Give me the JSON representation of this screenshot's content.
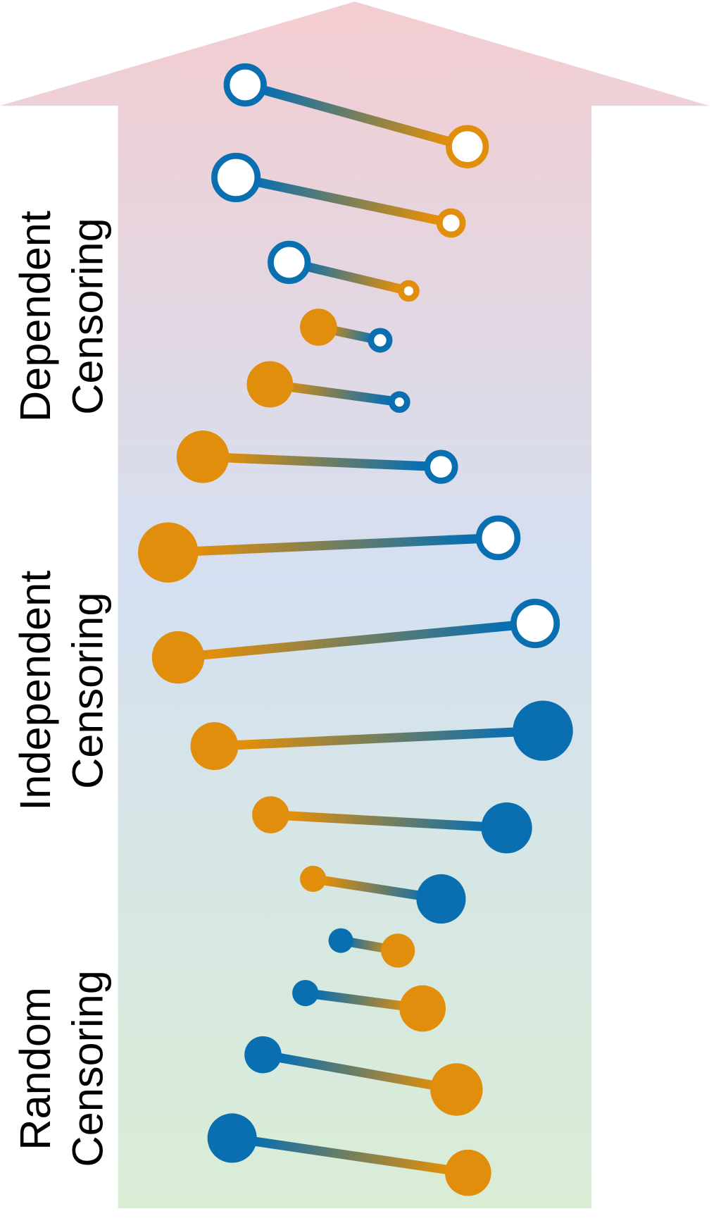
{
  "labels": [
    [
      "Dependent",
      "Censoring"
    ],
    [
      "Independent",
      "Censoring"
    ],
    [
      "Random",
      "Censoring"
    ]
  ]
}
